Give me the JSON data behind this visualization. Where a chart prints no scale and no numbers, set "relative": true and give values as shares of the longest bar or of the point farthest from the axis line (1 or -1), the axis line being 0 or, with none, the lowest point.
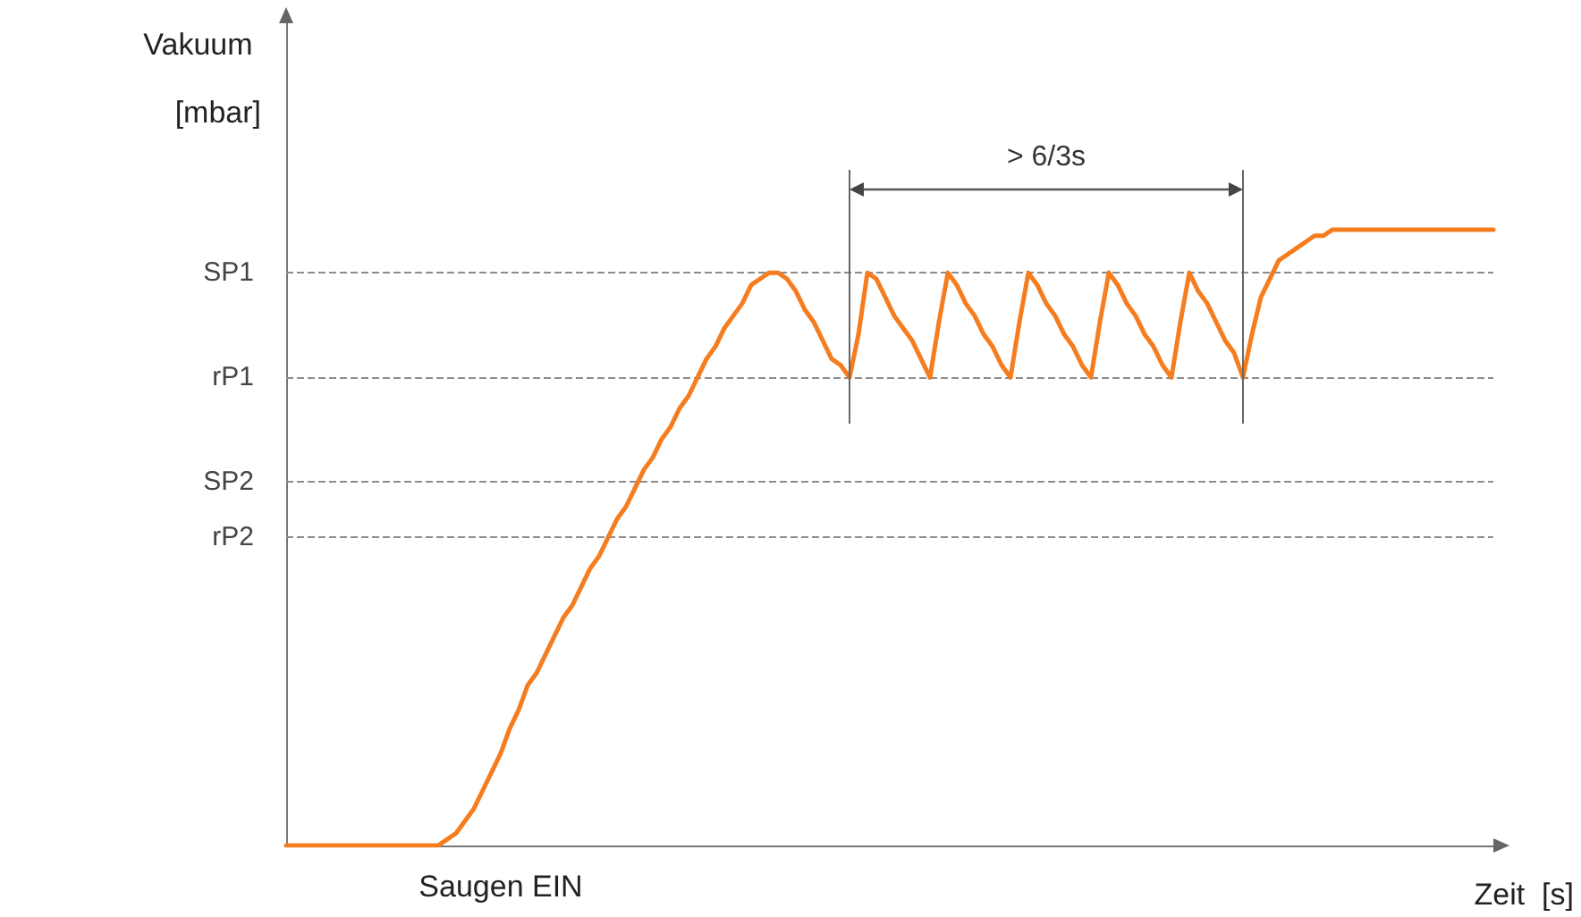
{
  "chart_data": {
    "type": "line",
    "relative": true,
    "ylabel": "Vakuum [mbar]",
    "xlabel": "Zeit  [s]",
    "categories": [
      null,
      null,
      null,
      null,
      null,
      null,
      null,
      null,
      null,
      null,
      null,
      null,
      null,
      null,
      null,
      null,
      null,
      null,
      null,
      null,
      null,
      null,
      null,
      null,
      null,
      null,
      null,
      null,
      null,
      null,
      null,
      null,
      null,
      null,
      null,
      null,
      null,
      null,
      null,
      null,
      null,
      null,
      null,
      null,
      null,
      null,
      null,
      null,
      null,
      null,
      null,
      null,
      null,
      null,
      null,
      null,
      null,
      null,
      null,
      null,
      null,
      null,
      null,
      null,
      null,
      null,
      null,
      null,
      null,
      null,
      null,
      null,
      null,
      null,
      null,
      null,
      null,
      null,
      null,
      null,
      null,
      null,
      null,
      null,
      null,
      null,
      null,
      null,
      null,
      null,
      null,
      null,
      null,
      null,
      null,
      null,
      null,
      null,
      null,
      null,
      null,
      null,
      null,
      null,
      null,
      null,
      null,
      null,
      null,
      null,
      null,
      null,
      null,
      null,
      null,
      null,
      null,
      null,
      null,
      null,
      null,
      null,
      null,
      null,
      null,
      null,
      null,
      null,
      null,
      null,
      null,
      null,
      null,
      null,
      null,
      null
    ],
    "series": [
      {
        "color": "#f57d1f",
        "values": [
          0,
          0,
          0,
          0,
          0,
          0,
          0,
          0,
          0,
          0,
          0,
          0,
          0,
          0,
          0,
          0,
          0,
          0,
          0.01,
          0.02,
          0.04,
          0.06,
          0.09,
          0.12,
          0.15,
          0.19,
          0.22,
          0.26,
          0.28,
          0.31,
          0.34,
          0.37,
          0.39,
          0.42,
          0.45,
          0.47,
          0.5,
          0.53,
          0.55,
          0.58,
          0.61,
          0.63,
          0.66,
          0.68,
          0.71,
          0.73,
          0.76,
          0.79,
          0.81,
          0.84,
          0.86,
          0.88,
          0.91,
          0.92,
          0.93,
          0.93,
          0.92,
          0.9,
          0.87,
          0.85,
          0.82,
          0.79,
          0.78,
          0.76,
          0.83,
          0.93,
          0.92,
          0.89,
          0.86,
          0.84,
          0.82,
          0.79,
          0.76,
          0.85,
          0.93,
          0.91,
          0.88,
          0.86,
          0.83,
          0.81,
          0.78,
          0.76,
          0.85,
          0.93,
          0.91,
          0.88,
          0.86,
          0.83,
          0.81,
          0.78,
          0.76,
          0.85,
          0.93,
          0.91,
          0.88,
          0.86,
          0.83,
          0.81,
          0.78,
          0.76,
          0.85,
          0.93,
          0.9,
          0.88,
          0.85,
          0.82,
          0.8,
          0.76,
          0.83,
          0.89,
          0.92,
          0.95,
          0.96,
          0.97,
          0.98,
          0.99,
          0.99,
          1,
          1,
          1,
          1,
          1,
          1,
          1,
          1,
          1,
          1,
          1,
          1,
          1,
          1,
          1,
          1,
          1,
          1,
          1
        ]
      }
    ],
    "ref_lines": [
      {
        "axis": "y",
        "value": 0.93,
        "label": "SP1",
        "color": "#8c8c8c",
        "line_style": "dashed"
      },
      {
        "axis": "y",
        "value": 0.76,
        "label": "rP1",
        "color": "#8c8c8c",
        "line_style": "dashed"
      },
      {
        "axis": "y",
        "value": 0.59,
        "label": "SP2",
        "color": "#8c8c8c",
        "line_style": "dashed"
      },
      {
        "axis": "y",
        "value": 0.5,
        "label": "rP2",
        "color": "#8c8c8c",
        "line_style": "dashed"
      }
    ],
    "annotations": [
      "> 6/3s",
      "Saugen EIN"
    ],
    "marker": "none",
    "line_style": "solid",
    "grid": false
  }
}
